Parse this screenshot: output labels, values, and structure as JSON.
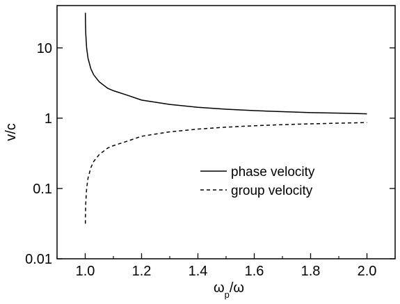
{
  "chart_data": {
    "type": "line",
    "title": "",
    "xlabel": {
      "main": "ω",
      "sub": "p",
      "rest": "/ω"
    },
    "ylabel": "v/c",
    "xlim": [
      0.9,
      2.1
    ],
    "ylim": [
      0.01,
      40
    ],
    "yscale": "log",
    "x_ticks": [
      1.0,
      1.2,
      1.4,
      1.6,
      1.8,
      2.0
    ],
    "x_tick_labels": [
      "1.0",
      "1.2",
      "1.4",
      "1.6",
      "1.8",
      "2.0"
    ],
    "y_ticks": [
      0.01,
      0.1,
      1,
      10
    ],
    "y_tick_labels": [
      "0.01",
      "0.1",
      "1",
      "10"
    ],
    "grid": false,
    "legend_position": "center-right",
    "series": [
      {
        "name": "phase velocity",
        "style": "solid",
        "x": [
          1.0005,
          1.001,
          1.002,
          1.005,
          1.01,
          1.02,
          1.03,
          1.05,
          1.08,
          1.1,
          1.15,
          1.2,
          1.3,
          1.4,
          1.5,
          1.6,
          1.7,
          1.8,
          1.9,
          2.0
        ],
        "y": [
          31.6,
          22.4,
          15.8,
          10.0,
          7.1,
          5.05,
          4.14,
          3.28,
          2.66,
          2.46,
          2.12,
          1.81,
          1.57,
          1.43,
          1.34,
          1.28,
          1.24,
          1.2,
          1.18,
          1.155
        ]
      },
      {
        "name": "group velocity",
        "style": "dashed",
        "x": [
          1.0005,
          1.001,
          1.002,
          1.005,
          1.01,
          1.02,
          1.03,
          1.05,
          1.08,
          1.1,
          1.15,
          1.2,
          1.3,
          1.4,
          1.5,
          1.6,
          1.7,
          1.8,
          1.9,
          2.0
        ],
        "y": [
          0.0316,
          0.0447,
          0.063,
          0.1,
          0.141,
          0.198,
          0.242,
          0.305,
          0.376,
          0.407,
          0.472,
          0.553,
          0.639,
          0.7,
          0.745,
          0.781,
          0.809,
          0.831,
          0.85,
          0.866
        ]
      }
    ]
  }
}
